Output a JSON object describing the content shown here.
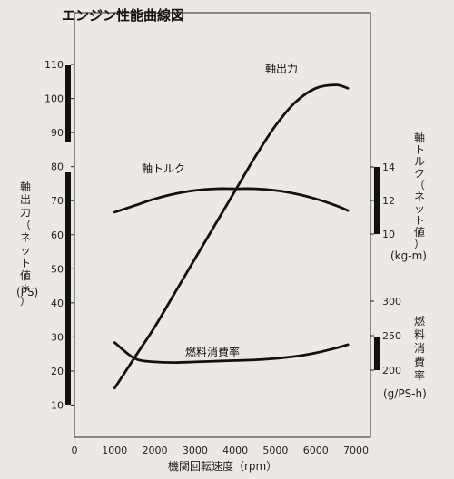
{
  "chart_data": {
    "type": "line",
    "title": "エンジン性能曲線図",
    "xlabel": "機関回転速度（rpm）",
    "x_ticks": [
      "0",
      "1000",
      "2000",
      "3000",
      "4000",
      "5000",
      "6000",
      "7000"
    ],
    "xlim": [
      0,
      7000
    ],
    "left_axis": {
      "label_lines": [
        "軸",
        "出",
        "力",
        "（",
        "ネ",
        "ッ",
        "ト",
        "値",
        "＊",
        "）"
      ],
      "unit": "(PS)",
      "ticks": [
        "10",
        "20",
        "30",
        "40",
        "50",
        "60",
        "70",
        "80",
        "90",
        "100",
        "110"
      ],
      "ylim": [
        0,
        110
      ]
    },
    "right_axis_torque": {
      "label_lines": [
        "軸",
        "ト",
        "ル",
        "ク",
        "（",
        "ネ",
        "ッ",
        "ト",
        "値",
        "）"
      ],
      "unit": "(kg-m)",
      "ticks": [
        "10",
        "12",
        "14"
      ]
    },
    "right_axis_fuel": {
      "label_lines": [
        "燃",
        "料",
        "消",
        "費",
        "率"
      ],
      "unit": "(g/PS-h)",
      "ticks": [
        "200",
        "250",
        "300"
      ]
    },
    "series": [
      {
        "name": "軸出力",
        "axis": "left",
        "x": [
          1000,
          1500,
          2000,
          2500,
          3000,
          3500,
          4000,
          4500,
          5000,
          5500,
          6000,
          6500,
          6800
        ],
        "y": [
          15,
          24,
          33,
          43,
          53,
          63,
          73,
          83,
          92,
          99,
          103,
          104,
          103
        ]
      },
      {
        "name": "軸トルク",
        "axis": "right_torque",
        "x": [
          1000,
          1500,
          2000,
          2500,
          3000,
          3500,
          4000,
          4500,
          5000,
          5500,
          6000,
          6500,
          6800
        ],
        "y": [
          11.3,
          11.7,
          12.1,
          12.4,
          12.6,
          12.7,
          12.7,
          12.7,
          12.6,
          12.4,
          12.1,
          11.7,
          11.4
        ]
      },
      {
        "name": "燃料消費率",
        "axis": "right_fuel",
        "x": [
          1000,
          1500,
          2000,
          2500,
          3000,
          3500,
          4000,
          4500,
          5000,
          5500,
          6000,
          6500,
          6800
        ],
        "y": [
          240,
          217,
          212,
          211,
          212,
          213,
          214,
          215,
          217,
          220,
          225,
          232,
          237
        ]
      }
    ]
  }
}
